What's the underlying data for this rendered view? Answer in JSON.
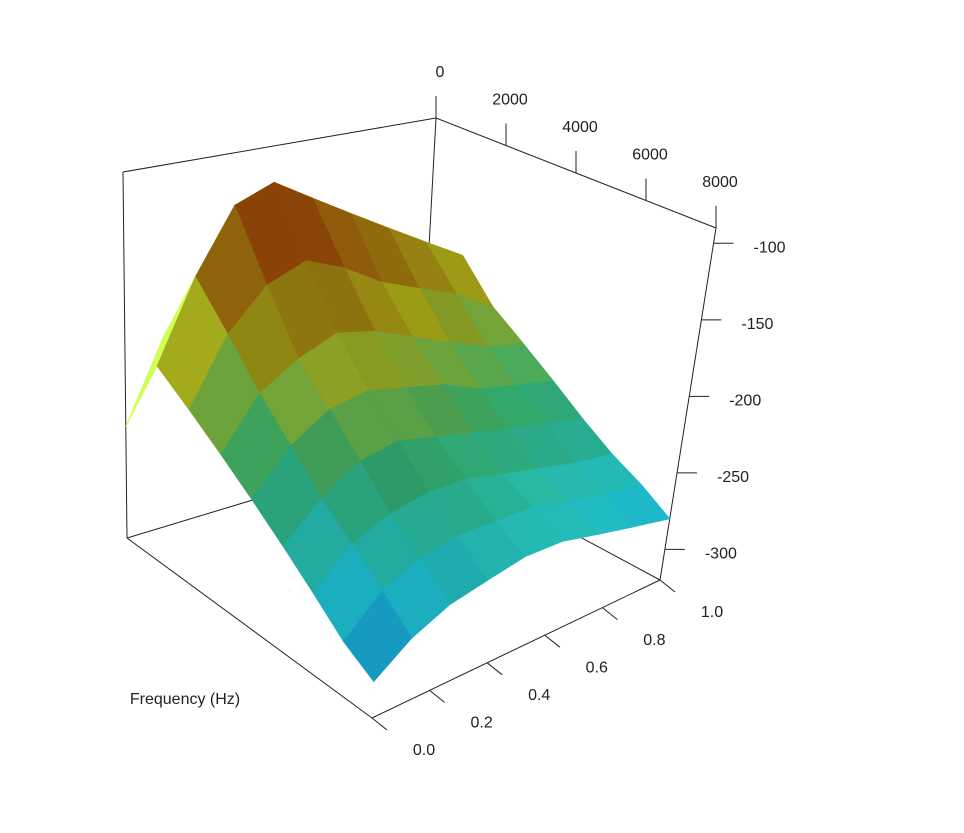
{
  "chart_data": {
    "type": "surface",
    "xlabel": "Frequency (Hz)",
    "x": [
      0,
      1000,
      2000,
      3000,
      4000,
      5000,
      6000,
      7000,
      8000
    ],
    "y": [
      0,
      0.125,
      0.25,
      0.375,
      0.5,
      0.625,
      0.75,
      0.875,
      1
    ],
    "z": [
      [
        -250,
        -200,
        -215,
        -230,
        -245,
        -260,
        -275,
        -290,
        -300
      ],
      [
        -200,
        -150,
        -175,
        -200,
        -220,
        -240,
        -255,
        -270,
        -285
      ],
      [
        -180,
        -110,
        -150,
        -185,
        -205,
        -225,
        -245,
        -260,
        -275
      ],
      [
        -170,
        -100,
        -140,
        -175,
        -200,
        -220,
        -240,
        -255,
        -270
      ],
      [
        -175,
        -115,
        -150,
        -180,
        -205,
        -225,
        -240,
        -255,
        -265
      ],
      [
        -185,
        -130,
        -165,
        -190,
        -210,
        -230,
        -245,
        -255,
        -265
      ],
      [
        -195,
        -145,
        -175,
        -200,
        -220,
        -235,
        -250,
        -260,
        -270
      ],
      [
        -205,
        -160,
        -185,
        -210,
        -225,
        -240,
        -255,
        -265,
        -275
      ],
      [
        -215,
        -175,
        -200,
        -215,
        -230,
        -245,
        -258,
        -268,
        -280
      ]
    ],
    "xlim": [
      0,
      8000
    ],
    "xticks": [
      0,
      2000,
      4000,
      6000,
      8000
    ],
    "ylim": [
      0,
      1
    ],
    "yticks": [
      {
        "value": 0,
        "label": "0.0"
      },
      0.2,
      0.4,
      0.6,
      0.8,
      {
        "value": 1,
        "label": "1.0"
      }
    ],
    "zlim": [
      -320,
      -90
    ],
    "zticks": [
      -100,
      -150,
      -200,
      -250,
      -300
    ],
    "colors": [
      "#1060c8",
      "#20d8f0",
      "#40d080",
      "#e8e820",
      "#f09010",
      "#c80000"
    ]
  }
}
